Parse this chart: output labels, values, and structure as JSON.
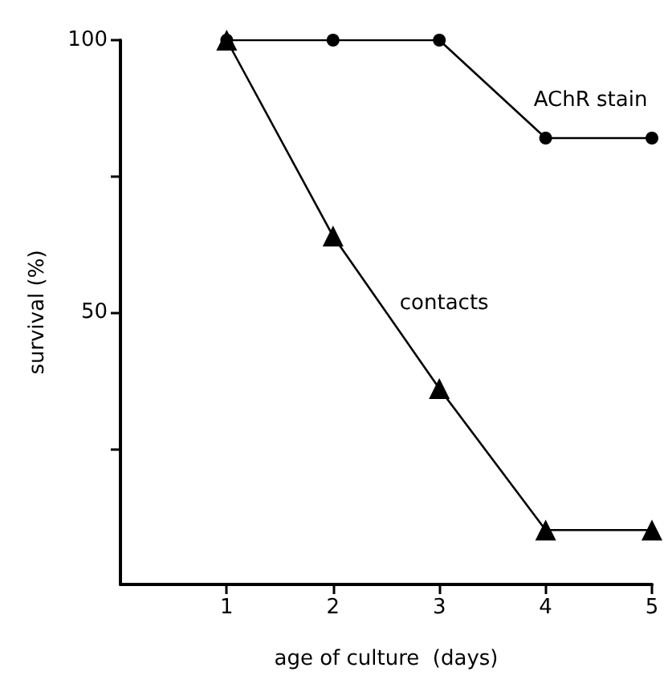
{
  "chart_data": {
    "type": "line",
    "xlabel": "age of culture  (days)",
    "ylabel": "survival (%)",
    "x": [
      1,
      2,
      3,
      4,
      5
    ],
    "series": [
      {
        "name": "AChR stain",
        "color": "#000000",
        "marker": "circle",
        "values": [
          100,
          100,
          100,
          82,
          82
        ]
      },
      {
        "name": "contacts",
        "color": "#000000",
        "marker": "triangle",
        "values": [
          100,
          64,
          36,
          10,
          10
        ]
      }
    ],
    "xlim": [
      0,
      5
    ],
    "xticks": [
      1,
      2,
      3,
      4,
      5
    ],
    "ylim": [
      0,
      100
    ],
    "yticks": [
      {
        "value": 25,
        "label": null
      },
      50,
      {
        "value": 75,
        "label": null
      },
      100
    ],
    "grid": false,
    "legend": false,
    "line_style": "solid"
  }
}
